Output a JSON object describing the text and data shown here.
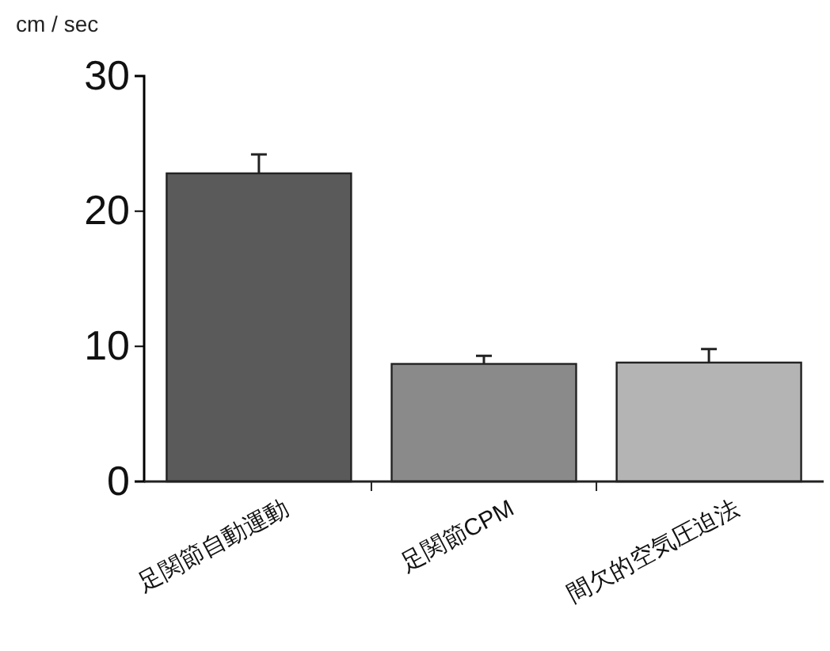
{
  "chart_data": {
    "type": "bar",
    "ylabel": "cm / sec",
    "categories": [
      "足関節自動運動",
      "足関節CPM",
      "間欠的空気圧迫法"
    ],
    "values": [
      22.8,
      8.7,
      8.8
    ],
    "colors": [
      "#5a5a5a",
      "#8a8a8a",
      "#b4b4b4"
    ],
    "errors": [
      [
        22.8,
        24.2
      ],
      [
        8.7,
        9.3
      ],
      [
        8.8,
        9.8
      ]
    ],
    "ylim": [
      0,
      30
    ],
    "yticks": [
      0,
      10,
      20,
      30
    ],
    "grid": false
  }
}
